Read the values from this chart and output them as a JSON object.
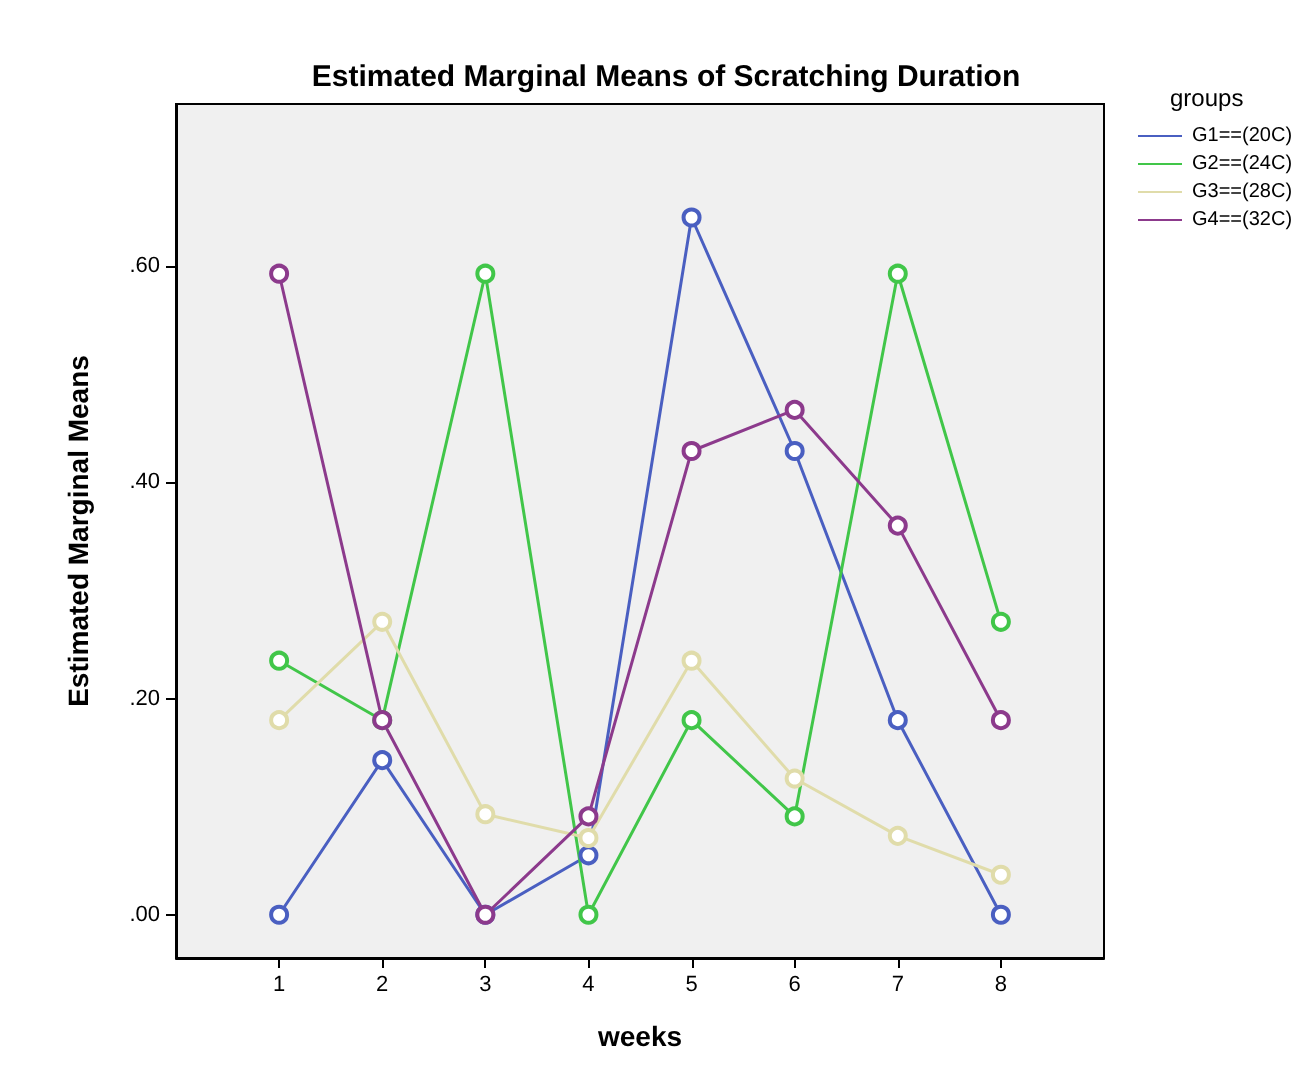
{
  "chart_data": {
    "type": "line",
    "title": "Estimated Marginal Means of Scratching Duration",
    "xlabel": "weeks",
    "ylabel": "Estimated Marginal Means",
    "legend_title": "groups",
    "x": [
      1,
      2,
      3,
      4,
      5,
      6,
      7,
      8
    ],
    "series": [
      {
        "name": "G1==(20C)",
        "color": "#4a5fc1",
        "values": [
          0.0,
          0.143,
          0.0,
          0.055,
          0.645,
          0.429,
          0.18,
          0.0
        ]
      },
      {
        "name": "G2==(24C)",
        "color": "#41c649",
        "values": [
          0.235,
          0.18,
          0.593,
          0.0,
          0.18,
          0.091,
          0.593,
          0.271
        ]
      },
      {
        "name": "G3==(28C)",
        "color": "#e0dcaa",
        "values": [
          0.18,
          0.271,
          0.093,
          0.071,
          0.235,
          0.126,
          0.073,
          0.037
        ]
      },
      {
        "name": "G4==(32C)",
        "color": "#8c3a8c",
        "values": [
          0.593,
          0.18,
          0.0,
          0.091,
          0.429,
          0.467,
          0.36,
          0.18
        ]
      }
    ],
    "xlim": [
      0,
      9
    ],
    "xticks": [
      1,
      2,
      3,
      4,
      5,
      6,
      7,
      8
    ],
    "ylim": [
      -0.04,
      0.75
    ],
    "yticks": [
      {
        "value": 0,
        "label": ".00"
      },
      {
        "value": 0.2,
        "label": ".20"
      },
      {
        "value": 0.4,
        "label": ".40"
      },
      {
        "value": 0.6,
        "label": ".60"
      }
    ],
    "grid": false,
    "legend": "right",
    "marker": "circle",
    "line_style": "solid"
  }
}
